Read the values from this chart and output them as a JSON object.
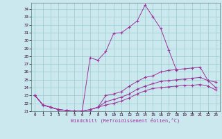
{
  "xlabel": "Windchill (Refroidissement éolien,°C)",
  "bg_color": "#cce8ef",
  "line_color": "#993399",
  "grid_color": "#99cccc",
  "xlim": [
    -0.5,
    23.5
  ],
  "ylim": [
    21.0,
    34.8
  ],
  "xticks": [
    0,
    1,
    2,
    3,
    4,
    5,
    6,
    7,
    8,
    9,
    10,
    11,
    12,
    13,
    14,
    15,
    16,
    17,
    18,
    19,
    20,
    21,
    22,
    23
  ],
  "yticks": [
    21,
    22,
    23,
    24,
    25,
    26,
    27,
    28,
    29,
    30,
    31,
    32,
    33,
    34
  ],
  "series": [
    [
      23.0,
      21.8,
      21.5,
      21.2,
      21.1,
      21.0,
      21.0,
      27.8,
      27.5,
      28.6,
      30.9,
      31.0,
      31.7,
      32.5,
      34.5,
      33.0,
      31.5,
      28.8,
      26.2,
      null,
      null,
      null,
      null,
      null
    ],
    [
      23.0,
      21.8,
      21.5,
      21.2,
      21.1,
      21.0,
      21.0,
      21.2,
      21.5,
      23.0,
      23.2,
      23.5,
      24.2,
      24.8,
      25.3,
      25.5,
      26.0,
      26.2,
      26.3,
      26.4,
      26.5,
      26.6,
      24.9,
      24.7
    ],
    [
      23.0,
      21.8,
      21.5,
      21.2,
      21.1,
      21.0,
      21.0,
      21.2,
      21.5,
      22.2,
      22.5,
      22.8,
      23.2,
      23.8,
      24.2,
      24.5,
      24.8,
      24.9,
      25.0,
      25.1,
      25.2,
      25.3,
      24.9,
      24.0
    ],
    [
      23.0,
      21.8,
      21.5,
      21.2,
      21.1,
      21.0,
      21.0,
      21.2,
      21.5,
      21.8,
      22.0,
      22.3,
      22.7,
      23.2,
      23.6,
      23.9,
      24.0,
      24.1,
      24.2,
      24.3,
      24.3,
      24.4,
      24.2,
      23.7
    ]
  ]
}
